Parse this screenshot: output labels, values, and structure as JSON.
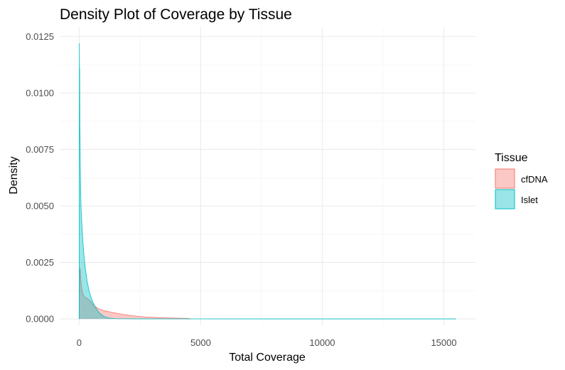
{
  "chart_data": {
    "type": "area",
    "title": "Density Plot of Coverage by Tissue",
    "xlabel": "Total Coverage",
    "ylabel": "Density",
    "xlim": [
      -800,
      16300
    ],
    "ylim": [
      -0.00028,
      0.01292
    ],
    "x_ticks": [
      0,
      5000,
      10000,
      15000
    ],
    "x_tick_labels": [
      "0",
      "5000",
      "10000",
      "15000"
    ],
    "y_ticks": [
      0,
      0.0025,
      0.005,
      0.0075,
      0.01,
      0.0125
    ],
    "y_tick_labels": [
      "0.0000",
      "0.0025",
      "0.0050",
      "0.0075",
      "0.0100",
      "0.0125"
    ],
    "grid": true,
    "legend": {
      "title": "Tissue",
      "position": "right"
    },
    "series": [
      {
        "name": "cfDNA",
        "fill": "#F8766D",
        "stroke": "#F8766D",
        "points": [
          [
            0,
            0.0
          ],
          [
            10,
            0.0012
          ],
          [
            25,
            0.0021
          ],
          [
            40,
            0.00225
          ],
          [
            55,
            0.0019
          ],
          [
            80,
            0.00155
          ],
          [
            120,
            0.00125
          ],
          [
            170,
            0.00105
          ],
          [
            250,
            0.00095
          ],
          [
            350,
            0.0009
          ],
          [
            450,
            0.0008
          ],
          [
            600,
            0.0006
          ],
          [
            800,
            0.00045
          ],
          [
            1000,
            0.00037
          ],
          [
            1300,
            0.0003
          ],
          [
            1700,
            0.00022
          ],
          [
            2200,
            0.00014
          ],
          [
            2700,
            9e-05
          ],
          [
            3200,
            6e-05
          ],
          [
            3700,
            4e-05
          ],
          [
            4200,
            3e-05
          ],
          [
            4500,
            2e-05
          ],
          [
            4600,
            0.0
          ]
        ]
      },
      {
        "name": "Islet",
        "fill": "#00BFC4",
        "stroke": "#00BFC4",
        "points": [
          [
            0,
            0.0
          ],
          [
            5,
            0.006
          ],
          [
            10,
            0.0122
          ],
          [
            15,
            0.0108
          ],
          [
            22,
            0.0111
          ],
          [
            30,
            0.0085
          ],
          [
            38,
            0.0082
          ],
          [
            48,
            0.0068
          ],
          [
            60,
            0.0058
          ],
          [
            80,
            0.0049
          ],
          [
            110,
            0.0042
          ],
          [
            150,
            0.0035
          ],
          [
            200,
            0.0028
          ],
          [
            260,
            0.0022
          ],
          [
            330,
            0.00165
          ],
          [
            420,
            0.0012
          ],
          [
            520,
            0.00085
          ],
          [
            650,
            0.00055
          ],
          [
            800,
            0.0003
          ],
          [
            1000,
            0.00012
          ],
          [
            1200,
            4e-05
          ],
          [
            1500,
            1e-05
          ],
          [
            2500,
            4e-06
          ],
          [
            5000,
            2e-06
          ],
          [
            10000,
            1e-06
          ],
          [
            15500,
            1e-06
          ],
          [
            15500,
            0.0
          ]
        ]
      }
    ]
  }
}
